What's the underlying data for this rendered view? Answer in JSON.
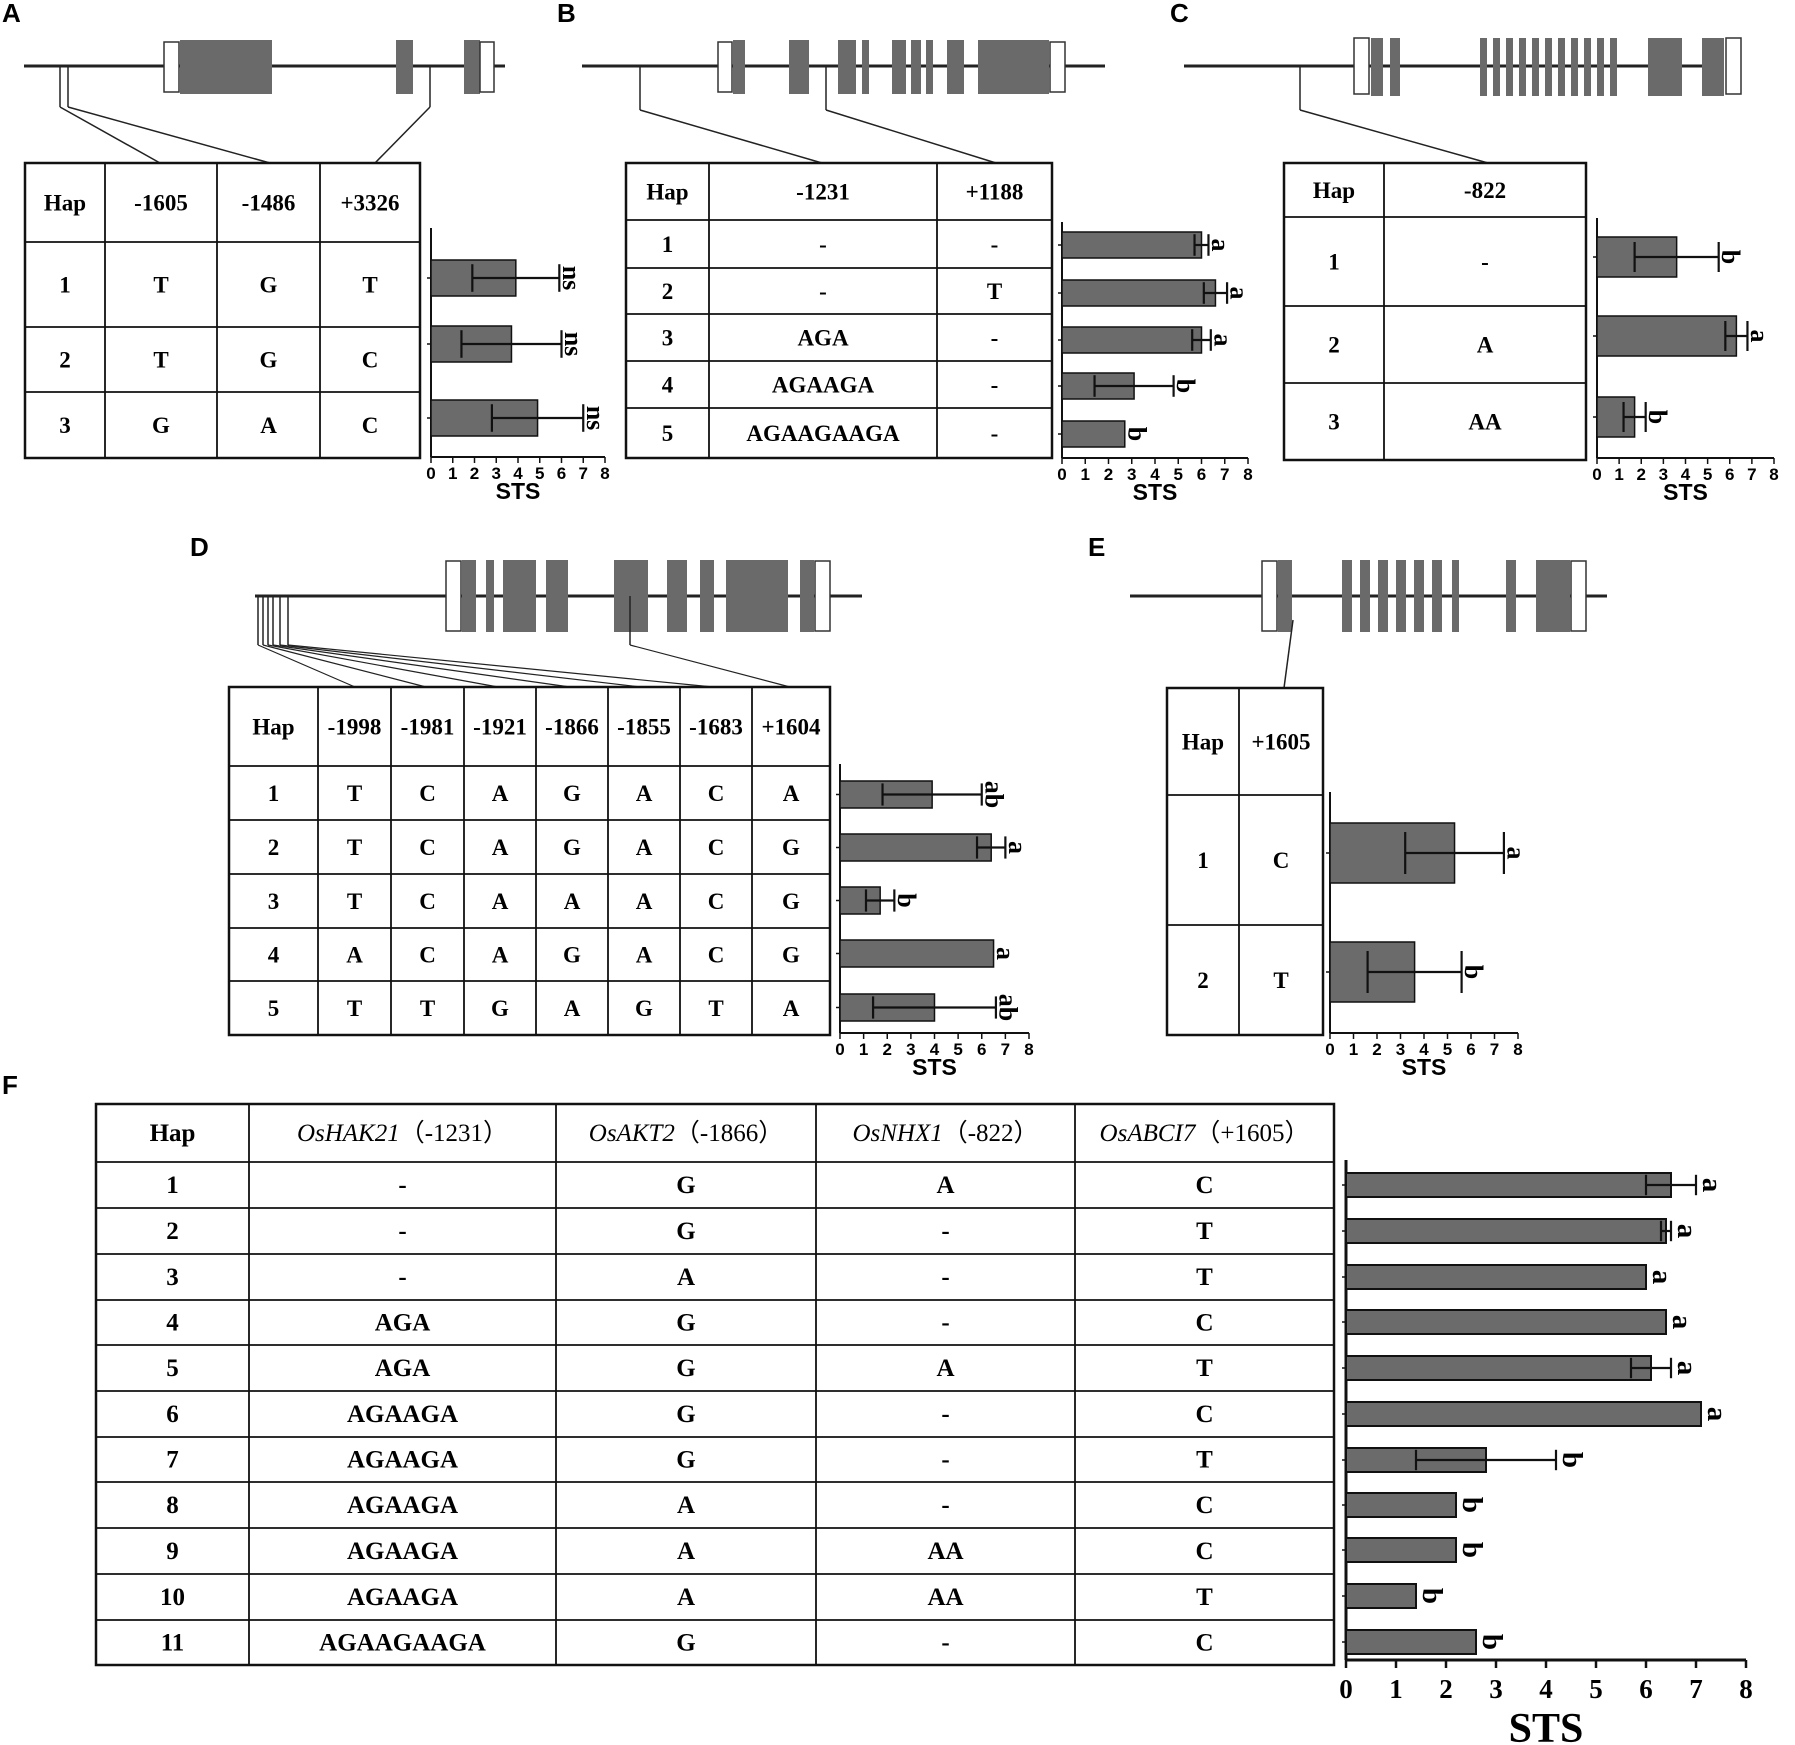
{
  "chart_data": [
    {
      "panel": "A",
      "type": "bar",
      "orientation": "horizontal",
      "columns": [
        "Hap",
        "-1605",
        "-1486",
        "+3326"
      ],
      "rows": [
        [
          "1",
          "T",
          "G",
          "T"
        ],
        [
          "2",
          "T",
          "G",
          "C"
        ],
        [
          "3",
          "G",
          "A",
          "C"
        ]
      ],
      "categories": [
        "1",
        "2",
        "3"
      ],
      "values": [
        3.9,
        3.7,
        4.9
      ],
      "errors": [
        2.0,
        2.3,
        2.1
      ],
      "significance": [
        "ns",
        "ns",
        "ns"
      ],
      "xlabel": "STS",
      "xlim": [
        0,
        8
      ],
      "ticks": [
        "0",
        "1",
        "2",
        "3",
        "4",
        "5",
        "6",
        "7",
        "8"
      ]
    },
    {
      "panel": "B",
      "type": "bar",
      "orientation": "horizontal",
      "columns": [
        "Hap",
        "-1231",
        "+1188"
      ],
      "rows": [
        [
          "1",
          "-",
          "-"
        ],
        [
          "2",
          "-",
          "T"
        ],
        [
          "3",
          "AGA",
          "-"
        ],
        [
          "4",
          "AGAAGA",
          "-"
        ],
        [
          "5",
          "AGAAGAAGA",
          "-"
        ]
      ],
      "categories": [
        "1",
        "2",
        "3",
        "4",
        "5"
      ],
      "values": [
        6.0,
        6.6,
        6.0,
        3.1,
        2.7
      ],
      "errors": [
        0.3,
        0.5,
        0.4,
        1.7,
        0
      ],
      "significance": [
        "a",
        "a",
        "a",
        "b",
        "b"
      ],
      "xlabel": "STS",
      "xlim": [
        0,
        8
      ],
      "ticks": [
        "0",
        "1",
        "2",
        "3",
        "4",
        "5",
        "6",
        "7",
        "8"
      ]
    },
    {
      "panel": "C",
      "type": "bar",
      "orientation": "horizontal",
      "columns": [
        "Hap",
        "-822"
      ],
      "rows": [
        [
          "1",
          "-"
        ],
        [
          "2",
          "A"
        ],
        [
          "3",
          "AA"
        ]
      ],
      "categories": [
        "1",
        "2",
        "3"
      ],
      "values": [
        3.6,
        6.3,
        1.7
      ],
      "errors": [
        1.9,
        0.5,
        0.5
      ],
      "significance": [
        "b",
        "a",
        "b"
      ],
      "xlabel": "STS",
      "xlim": [
        0,
        8
      ],
      "ticks": [
        "0",
        "1",
        "2",
        "3",
        "4",
        "5",
        "6",
        "7",
        "8"
      ]
    },
    {
      "panel": "D",
      "type": "bar",
      "orientation": "horizontal",
      "columns": [
        "Hap",
        "-1998",
        "-1981",
        "-1921",
        "-1866",
        "-1855",
        "-1683",
        "+1604"
      ],
      "rows": [
        [
          "1",
          "T",
          "C",
          "A",
          "G",
          "A",
          "C",
          "A"
        ],
        [
          "2",
          "T",
          "C",
          "A",
          "G",
          "A",
          "C",
          "G"
        ],
        [
          "3",
          "T",
          "C",
          "A",
          "A",
          "A",
          "C",
          "G"
        ],
        [
          "4",
          "A",
          "C",
          "A",
          "G",
          "A",
          "C",
          "G"
        ],
        [
          "5",
          "T",
          "T",
          "G",
          "A",
          "G",
          "T",
          "A"
        ]
      ],
      "categories": [
        "1",
        "2",
        "3",
        "4",
        "5"
      ],
      "values": [
        3.9,
        6.4,
        1.7,
        6.5,
        4.0
      ],
      "errors": [
        2.1,
        0.6,
        0.6,
        0,
        2.6
      ],
      "significance": [
        "ab",
        "a",
        "b",
        "a",
        "ab"
      ],
      "xlabel": "STS",
      "xlim": [
        0,
        8
      ],
      "ticks": [
        "0",
        "1",
        "2",
        "3",
        "4",
        "5",
        "6",
        "7",
        "8"
      ]
    },
    {
      "panel": "E",
      "type": "bar",
      "orientation": "horizontal",
      "columns": [
        "Hap",
        "+1605"
      ],
      "rows": [
        [
          "1",
          "C"
        ],
        [
          "2",
          "T"
        ]
      ],
      "categories": [
        "1",
        "2"
      ],
      "values": [
        5.3,
        3.6
      ],
      "errors": [
        2.1,
        2.0
      ],
      "significance": [
        "a",
        "b"
      ],
      "xlabel": "STS",
      "xlim": [
        0,
        8
      ],
      "ticks": [
        "0",
        "1",
        "2",
        "3",
        "4",
        "5",
        "6",
        "7",
        "8"
      ]
    },
    {
      "panel": "F",
      "type": "bar",
      "orientation": "horizontal",
      "columns": [
        {
          "gene": "",
          "pos": "Hap"
        },
        {
          "gene": "OsHAK21",
          "pos": "（-1231）"
        },
        {
          "gene": "OsAKT2",
          "pos": "（-1866）"
        },
        {
          "gene": "OsNHX1",
          "pos": "（-822）"
        },
        {
          "gene": "OsABCI7",
          "pos": "（+1605）"
        }
      ],
      "rows": [
        [
          "1",
          "-",
          "G",
          "A",
          "C"
        ],
        [
          "2",
          "-",
          "G",
          "-",
          "T"
        ],
        [
          "3",
          "-",
          "A",
          "-",
          "T"
        ],
        [
          "4",
          "AGA",
          "G",
          "-",
          "C"
        ],
        [
          "5",
          "AGA",
          "G",
          "A",
          "T"
        ],
        [
          "6",
          "AGAAGA",
          "G",
          "-",
          "C"
        ],
        [
          "7",
          "AGAAGA",
          "G",
          "-",
          "T"
        ],
        [
          "8",
          "AGAAGA",
          "A",
          "-",
          "C"
        ],
        [
          "9",
          "AGAAGA",
          "A",
          "AA",
          "C"
        ],
        [
          "10",
          "AGAAGA",
          "A",
          "AA",
          "T"
        ],
        [
          "11",
          "AGAAGAAGA",
          "G",
          "-",
          "C"
        ]
      ],
      "categories": [
        "1",
        "2",
        "3",
        "4",
        "5",
        "6",
        "7",
        "8",
        "9",
        "10",
        "11"
      ],
      "values": [
        6.5,
        6.4,
        6.0,
        6.4,
        6.1,
        7.1,
        2.8,
        2.2,
        2.2,
        1.4,
        2.6
      ],
      "errors": [
        0.5,
        0.1,
        0,
        0,
        0.4,
        0,
        1.4,
        0,
        0,
        0,
        0
      ],
      "significance": [
        "a",
        "a",
        "a",
        "a",
        "a",
        "a",
        "b",
        "b",
        "b",
        "b",
        "b"
      ],
      "xlabel": "STS",
      "xlim": [
        0,
        8
      ],
      "ticks": [
        "0",
        "1",
        "2",
        "3",
        "4",
        "5",
        "6",
        "7",
        "8"
      ]
    }
  ]
}
